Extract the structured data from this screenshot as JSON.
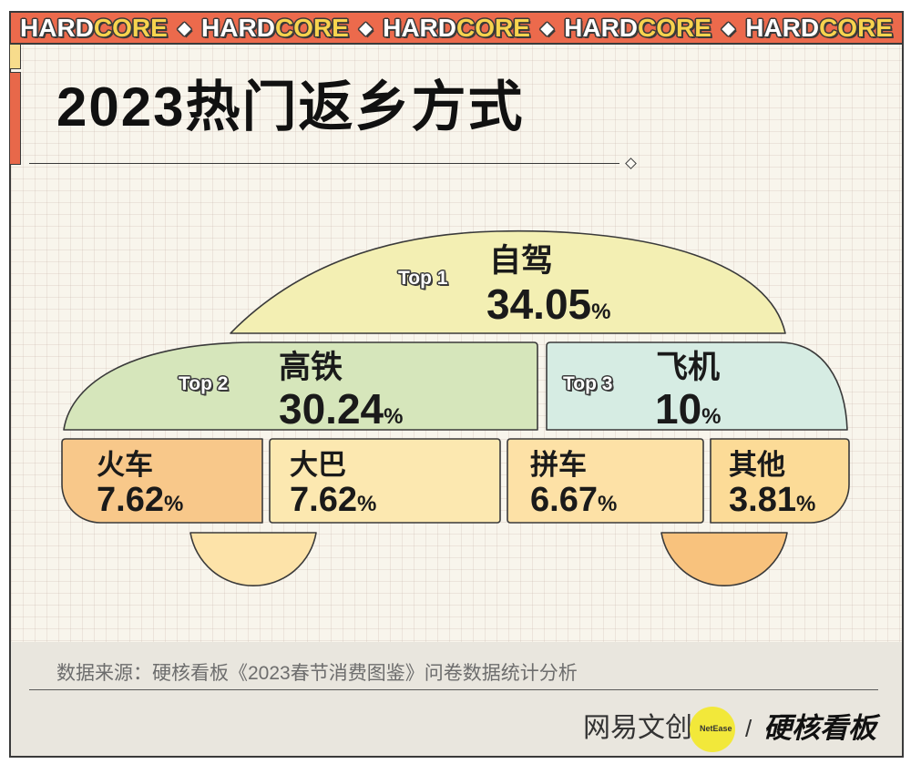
{
  "banner": {
    "word_part1": "HARD",
    "word_part2": "CORE",
    "separator": "◆"
  },
  "chart_data": {
    "type": "pie",
    "title": "2023热门返乡方式",
    "categories": [
      "自驾",
      "高铁",
      "飞机",
      "火车",
      "大巴",
      "拼车",
      "其他"
    ],
    "values": [
      34.05,
      30.24,
      10,
      7.62,
      7.62,
      6.67,
      3.81
    ],
    "unit": "%",
    "ranks": [
      "Top 1",
      "Top 2",
      "Top 3"
    ],
    "colors": [
      "#f3efb3",
      "#d6e6bb",
      "#d6ece3",
      "#f8c88a",
      "#fce8b0",
      "#fde1a6",
      "#fcdb97"
    ]
  },
  "footer": {
    "source": "数据来源：硬核看板《2023春节消费图鉴》问卷数据统计分析"
  },
  "branding": {
    "netease_wordmark": "网易文创",
    "netease_badge": "NetEase",
    "divider": "/",
    "hardcore_wordmark": "硬核看板"
  },
  "colors": {
    "banner": "#ec6a4c",
    "banner_accent": "#f7d34e",
    "wheel_left": "#fde3a9",
    "wheel_right": "#f8c27d",
    "badge": "#f2e83a"
  }
}
